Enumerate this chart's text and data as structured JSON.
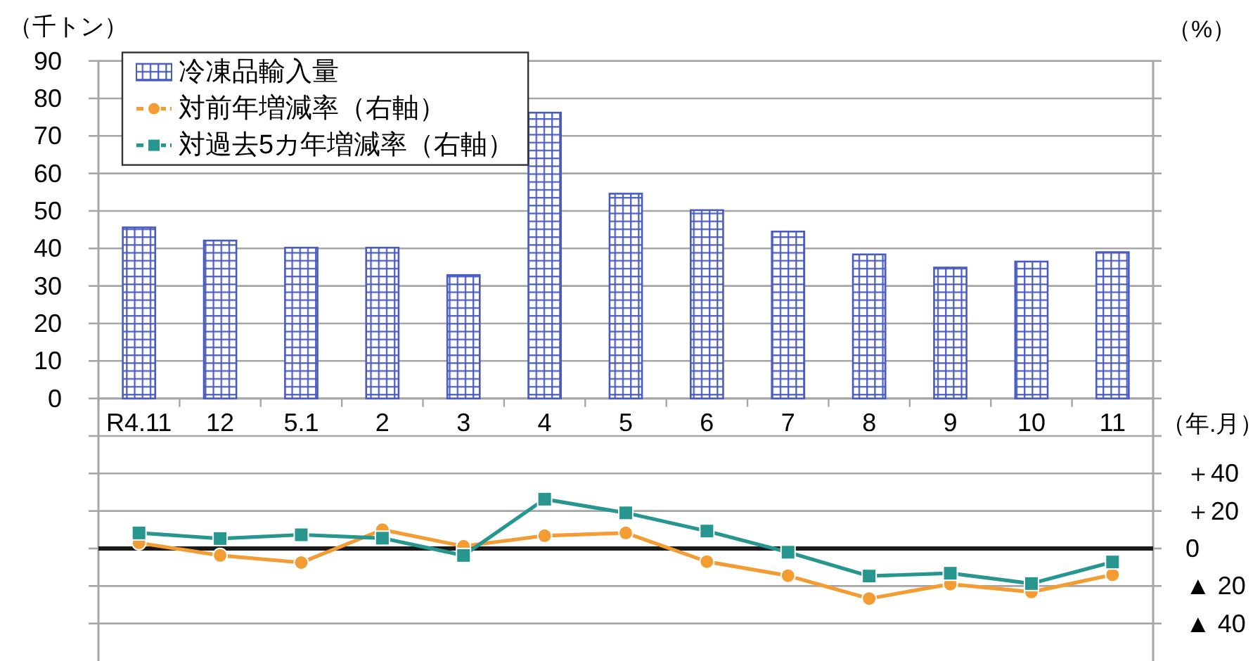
{
  "chart_data": {
    "type": "bar",
    "ylabel": "（千トン）",
    "y2label": "（%）",
    "xlabel": "（年.月）",
    "categories": [
      "R4.11",
      "12",
      "5.1",
      "2",
      "3",
      "4",
      "5",
      "6",
      "7",
      "8",
      "9",
      "10",
      "11"
    ],
    "series": [
      {
        "name": "冷凍品輸入量",
        "color": "#4a5bc0",
        "values": [
          45.6,
          42.1,
          40.2,
          40.2,
          32.9,
          76.2,
          54.6,
          50.2,
          44.5,
          38.4,
          34.9,
          36.5,
          39.0
        ]
      },
      {
        "name": "対前年増減率（右軸）",
        "type": "line",
        "axis": "y2",
        "color": "#f39c33",
        "marker": "circle",
        "line_style": "solid",
        "values": [
          3.0,
          -3.7,
          -7.5,
          10.0,
          1.2,
          6.8,
          8.3,
          -7.0,
          -14.5,
          -26.7,
          -19.0,
          -23.2,
          -14.0
        ]
      },
      {
        "name": "対過去5カ年増減率（右軸）",
        "type": "line",
        "axis": "y2",
        "color": "#27968f",
        "marker": "square",
        "line_style": "solid",
        "values": [
          8.3,
          5.3,
          7.3,
          5.5,
          -3.7,
          26.3,
          19.0,
          9.3,
          -2.0,
          -14.7,
          -13.2,
          -18.7,
          -7.2
        ]
      }
    ],
    "ylim": [
      -70,
      90
    ],
    "yticks": [
      {
        "value": -60,
        "label": null
      },
      {
        "value": -50,
        "label": null
      },
      {
        "value": -40,
        "label": null
      },
      {
        "value": -30,
        "label": null
      },
      {
        "value": -20,
        "label": null
      },
      {
        "value": -10,
        "label": null
      },
      0,
      10,
      20,
      30,
      40,
      50,
      60,
      70,
      80,
      90
    ],
    "y2lim": [
      -60,
      260
    ],
    "y2ticks": [
      {
        "value": -40,
        "label": "▲ 40"
      },
      {
        "value": -20,
        "label": "▲ 20"
      },
      0,
      {
        "value": 20,
        "label": "＋20"
      },
      {
        "value": 40,
        "label": "＋40"
      },
      {
        "value": 60,
        "label": null
      },
      {
        "value": 80,
        "label": null
      },
      {
        "value": 100,
        "label": null
      },
      {
        "value": 120,
        "label": null
      },
      {
        "value": 140,
        "label": null
      },
      {
        "value": 160,
        "label": null
      },
      {
        "value": 180,
        "label": null
      },
      {
        "value": 200,
        "label": null
      },
      {
        "value": 220,
        "label": null
      },
      {
        "value": 240,
        "label": null
      },
      {
        "value": 260,
        "label": null
      }
    ],
    "ref_lines": [
      {
        "axis": "y2",
        "value": 0,
        "color": "#1a1a1a"
      }
    ],
    "grid": "y",
    "legend": "top left"
  }
}
